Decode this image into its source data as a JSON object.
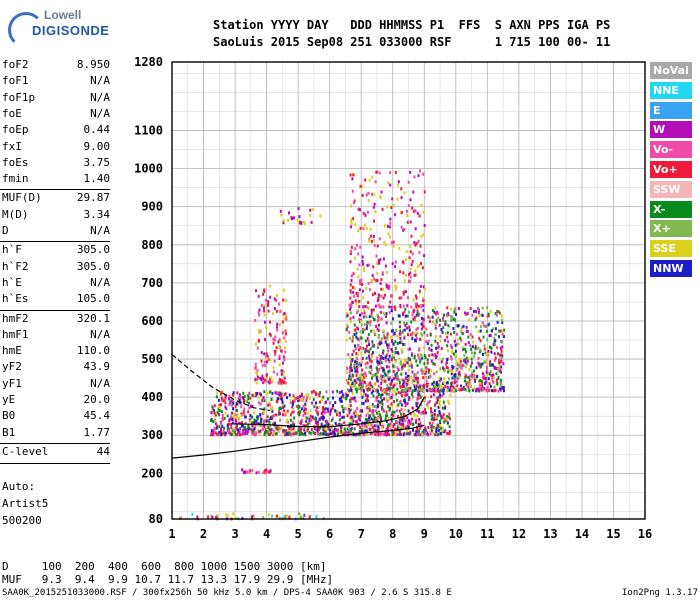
{
  "logo": {
    "line1": "Lowell",
    "line2": "DIGISONDE"
  },
  "header": {
    "row1": "Station YYYY DAY   DDD HHMMSS P1  FFS  S AXN PPS IGA PS",
    "row2": "SaoLuis 2015 Sep08 251 033000 RSF      1 715 100 00- 11"
  },
  "params": [
    {
      "k": "foF2",
      "v": "8.950"
    },
    {
      "k": "foF1",
      "v": "N/A"
    },
    {
      "k": "foF1p",
      "v": "N/A"
    },
    {
      "k": "foE",
      "v": "N/A"
    },
    {
      "k": "foEp",
      "v": "0.44"
    },
    {
      "k": "fxI",
      "v": "9.00"
    },
    {
      "k": "foEs",
      "v": "3.75"
    },
    {
      "k": "fmin",
      "v": "1.40"
    },
    {
      "k": "MUF(D)",
      "v": "29.87"
    },
    {
      "k": "M(D)",
      "v": "3.34"
    },
    {
      "k": "D",
      "v": "N/A"
    },
    {
      "k": "h`F",
      "v": "305.0"
    },
    {
      "k": "h`F2",
      "v": "305.0"
    },
    {
      "k": "h`E",
      "v": "N/A"
    },
    {
      "k": "h`Es",
      "v": "105.0"
    },
    {
      "k": "hmF2",
      "v": "320.1"
    },
    {
      "k": "hmF1",
      "v": "N/A"
    },
    {
      "k": "hmE",
      "v": "110.0"
    },
    {
      "k": "yF2",
      "v": "43.9"
    },
    {
      "k": "yF1",
      "v": "N/A"
    },
    {
      "k": "yE",
      "v": "20.0"
    },
    {
      "k": "B0",
      "v": "45.4"
    },
    {
      "k": "B1",
      "v": "1.77"
    },
    {
      "k": "C-level",
      "v": "44"
    }
  ],
  "auto": [
    "Auto:",
    "Artist5",
    "500200"
  ],
  "legend": [
    {
      "label": "NoVal",
      "color": "#a8a8a8"
    },
    {
      "label": "NNE",
      "color": "#22d7ef"
    },
    {
      "label": "E",
      "color": "#3aa2f0"
    },
    {
      "label": "W",
      "color": "#b10eb6"
    },
    {
      "label": "Vo-",
      "color": "#f24aa8"
    },
    {
      "label": "Vo+",
      "color": "#ee1c3a"
    },
    {
      "label": "SSW",
      "color": "#f3b5b5"
    },
    {
      "label": "X-",
      "color": "#0a8c1c"
    },
    {
      "label": "X+",
      "color": "#82b850"
    },
    {
      "label": "SSE",
      "color": "#d9d11c"
    },
    {
      "label": "NNW",
      "color": "#1e1ec8"
    }
  ],
  "footer": {
    "line1": "D     100  200  400  600  800 1000 1500 3000 [km]",
    "line2": "MUF   9.3  9.4  9.9 10.7 11.7 13.3 17.9 29.9 [MHz]",
    "line3": "SAA0K_2015251033000.RSF / 300fx256h 50 kHz 5.0 km / DPS-4 SAA0K 903 / 2.6 S 315.8 E",
    "version": "Ion2Png 1.3.17"
  },
  "chart_data": {
    "type": "scatter",
    "xlim": [
      1,
      16
    ],
    "ylim": [
      80,
      1280
    ],
    "xticks": [
      "1",
      "2",
      "3",
      "4",
      "5",
      "6",
      "7",
      "8",
      "9",
      "10",
      "11",
      "12",
      "13",
      "14",
      "15",
      "16"
    ],
    "yticks": [
      {
        "v": 80,
        "label": "80"
      },
      {
        "v": 200,
        "label": "200"
      },
      {
        "v": 300,
        "label": "300"
      },
      {
        "v": 400,
        "label": "400"
      },
      {
        "v": 500,
        "label": "500"
      },
      {
        "v": 600,
        "label": "600"
      },
      {
        "v": 700,
        "label": "700"
      },
      {
        "v": 800,
        "label": "800"
      },
      {
        "v": 900,
        "label": "900"
      },
      {
        "v": 1000,
        "label": "1000"
      },
      {
        "v": 1100,
        "label": "1100"
      },
      {
        "v": 1280,
        "label": "1280"
      }
    ],
    "grid": true,
    "echo_regions": [
      {
        "x": [
          3.0,
          4.1
        ],
        "y": [
          205,
          215
        ],
        "colors": [
          "#ee1c3a",
          "#f24aa8",
          "#b10eb6"
        ],
        "density": 0.6
      },
      {
        "x": [
          1.2,
          6.0
        ],
        "y": [
          84,
          98
        ],
        "colors": [
          "#22d7ef",
          "#d9d11c",
          "#82b850",
          "#ee1c3a",
          "#b10eb6"
        ],
        "density": 0.35
      },
      {
        "x": [
          3.6,
          4.6
        ],
        "y": [
          440,
          700
        ],
        "colors": [
          "#b10eb6",
          "#f24aa8",
          "#ee1c3a",
          "#d9d11c"
        ],
        "density": 0.3
      },
      {
        "x": [
          2.2,
          9.8
        ],
        "y": [
          305,
          420
        ],
        "colors": [
          "#ee1c3a",
          "#b10eb6",
          "#f24aa8",
          "#1e1ec8",
          "#d9d11c",
          "#0a8c1c"
        ],
        "density": 0.75
      },
      {
        "x": [
          6.5,
          11.5
        ],
        "y": [
          420,
          640
        ],
        "colors": [
          "#ee1c3a",
          "#b10eb6",
          "#f24aa8",
          "#d9d11c",
          "#82b850",
          "#0a8c1c",
          "#1e1ec8"
        ],
        "density": 0.55
      },
      {
        "x": [
          6.6,
          9.0
        ],
        "y": [
          640,
          1000
        ],
        "colors": [
          "#ee1c3a",
          "#b10eb6",
          "#f24aa8",
          "#d9d11c"
        ],
        "density": 0.18
      },
      {
        "x": [
          4.4,
          5.7
        ],
        "y": [
          860,
          900
        ],
        "colors": [
          "#d9d11c",
          "#b10eb6"
        ],
        "density": 0.25
      }
    ],
    "trace_solid": [
      [
        1,
        240
      ],
      [
        2,
        248
      ],
      [
        3,
        258
      ],
      [
        4,
        270
      ],
      [
        5,
        283
      ],
      [
        6,
        295
      ],
      [
        7,
        305
      ],
      [
        8,
        313
      ],
      [
        8.6,
        318
      ],
      [
        9.0,
        326
      ]
    ],
    "trace_dashed": [
      [
        1,
        512
      ],
      [
        1.6,
        470
      ],
      [
        2.3,
        425
      ],
      [
        3.0,
        392
      ],
      [
        3.6,
        372
      ],
      [
        4.1,
        365
      ]
    ],
    "trace_profile": [
      [
        2.9,
        330
      ],
      [
        4.0,
        328
      ],
      [
        5.0,
        323
      ],
      [
        6.0,
        322
      ],
      [
        7.0,
        330
      ],
      [
        7.8,
        338
      ],
      [
        8.4,
        350
      ],
      [
        8.8,
        370
      ],
      [
        9.0,
        400
      ]
    ]
  }
}
